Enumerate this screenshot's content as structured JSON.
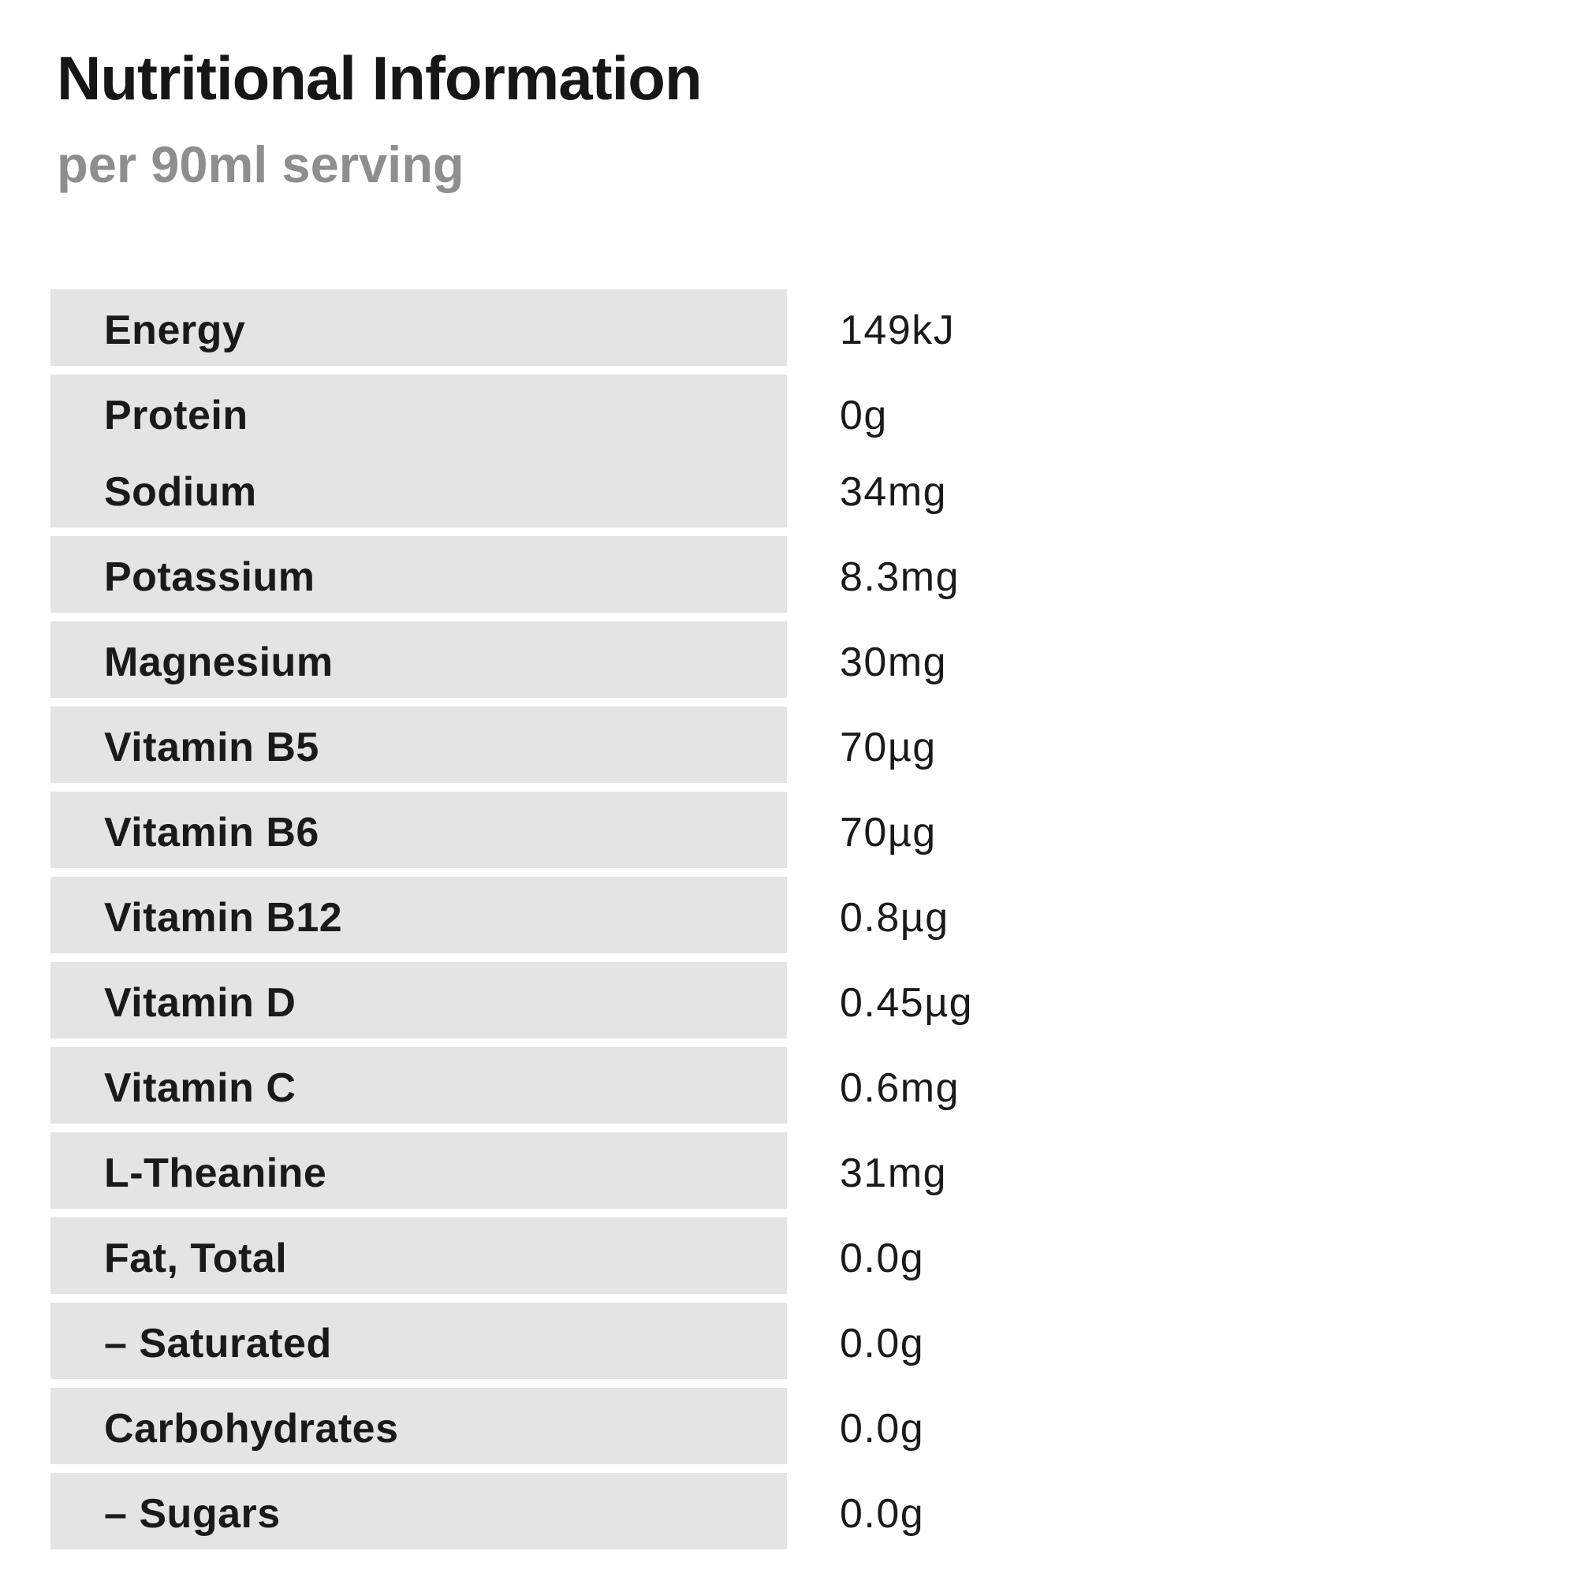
{
  "header": {
    "title": "Nutritional Information",
    "subtitle": "per 90ml serving"
  },
  "colors": {
    "row_background": "#e4e4e4",
    "text": "#1a1a1a",
    "subtitle_text": "#8e8e8e",
    "page_background": "#ffffff"
  },
  "table": {
    "rows": [
      {
        "label": "Energy",
        "value": "149kJ",
        "merge_with_next": false
      },
      {
        "label": "Protein",
        "value": "0g",
        "merge_with_next": true
      },
      {
        "label": "Sodium",
        "value": "34mg",
        "merge_with_next": false
      },
      {
        "label": "Potassium",
        "value": "8.3mg",
        "merge_with_next": false
      },
      {
        "label": "Magnesium",
        "value": "30mg",
        "merge_with_next": false
      },
      {
        "label": "Vitamin B5",
        "value": "70µg",
        "merge_with_next": false
      },
      {
        "label": "Vitamin B6",
        "value": "70µg",
        "merge_with_next": false
      },
      {
        "label": "Vitamin B12",
        "value": "0.8µg",
        "merge_with_next": false
      },
      {
        "label": "Vitamin D",
        "value": "0.45µg",
        "merge_with_next": false
      },
      {
        "label": "Vitamin C",
        "value": "0.6mg",
        "merge_with_next": false
      },
      {
        "label": "L-Theanine",
        "value": "31mg",
        "merge_with_next": false
      },
      {
        "label": "Fat, Total",
        "value": "0.0g",
        "merge_with_next": false
      },
      {
        "label": "– Saturated",
        "value": "0.0g",
        "merge_with_next": false
      },
      {
        "label": "Carbohydrates",
        "value": "0.0g",
        "merge_with_next": false
      },
      {
        "label": "– Sugars",
        "value": "0.0g",
        "merge_with_next": false
      }
    ]
  }
}
